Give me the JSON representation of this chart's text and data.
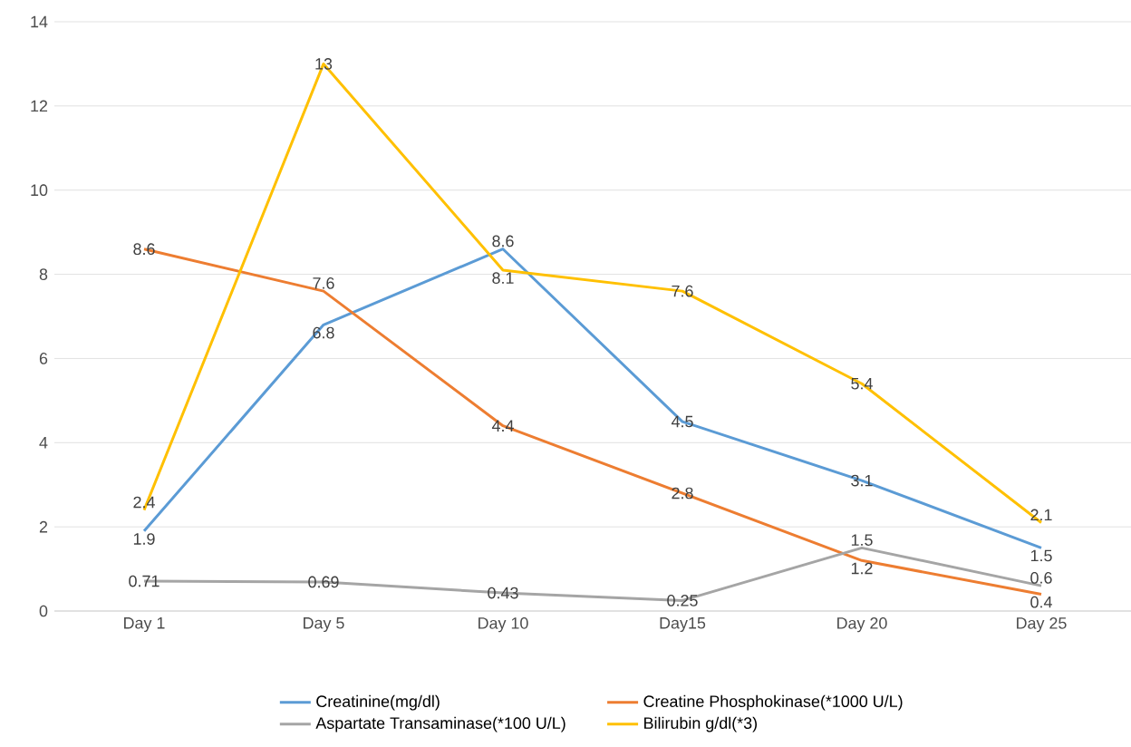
{
  "chart_data": {
    "type": "line",
    "categories": [
      "Day 1",
      "Day 5",
      "Day 10",
      "Day15",
      "Day 20",
      "Day 25"
    ],
    "series": [
      {
        "name": "Creatinine(mg/dl)",
        "color": "#5b9bd5",
        "values": [
          1.9,
          6.8,
          8.6,
          4.5,
          3.1,
          1.5
        ]
      },
      {
        "name": "Creatine Phosphokinase(*1000 U/L)",
        "color": "#ed7d31",
        "values": [
          8.6,
          7.6,
          4.4,
          2.8,
          1.2,
          0.4
        ]
      },
      {
        "name": "Aspartate Transaminase(*100 U/L)",
        "color": "#a5a5a5",
        "values": [
          0.71,
          0.69,
          0.43,
          0.25,
          1.5,
          0.6
        ]
      },
      {
        "name": "Bilirubin g/dl(*3)",
        "color": "#ffc000",
        "values": [
          2.4,
          13,
          8.1,
          7.6,
          5.4,
          2.1
        ]
      }
    ],
    "ylim": [
      0,
      14
    ],
    "yticks": [
      0,
      2,
      4,
      6,
      8,
      10,
      12,
      14
    ],
    "grid": "y",
    "legend": "bottom",
    "data_labels": true,
    "marker": "none",
    "line_style": "solid"
  }
}
